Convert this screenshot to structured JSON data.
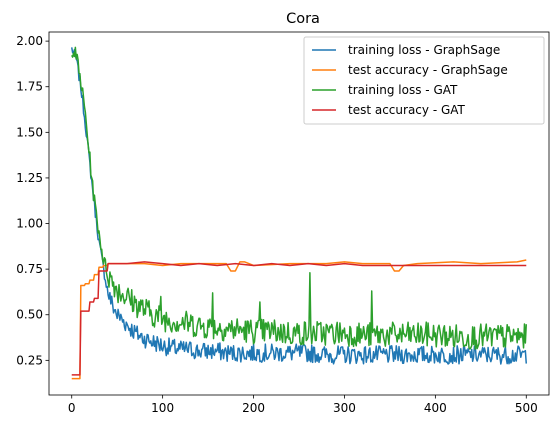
{
  "chart_data": {
    "type": "line",
    "title": "Cora",
    "xlabel": "",
    "ylabel": "",
    "xlim": [
      -25,
      525
    ],
    "ylim": [
      0.06,
      2.05
    ],
    "xticks": [
      0,
      100,
      200,
      300,
      400,
      500
    ],
    "xtick_labels": [
      "0",
      "100",
      "200",
      "300",
      "400",
      "500"
    ],
    "yticks": [
      0.25,
      0.5,
      0.75,
      1.0,
      1.25,
      1.5,
      1.75,
      2.0
    ],
    "ytick_labels": [
      "0.25",
      "0.50",
      "0.75",
      "1.00",
      "1.25",
      "1.50",
      "1.75",
      "2.00"
    ],
    "grid": false,
    "legend_position": "top-right",
    "series": [
      {
        "name": "training loss - GraphSage",
        "color": "#1f77b4",
        "x": [
          0,
          5,
          10,
          15,
          20,
          25,
          30,
          35,
          40,
          45,
          50,
          60,
          70,
          80,
          90,
          100,
          110,
          120,
          130,
          140,
          150,
          160,
          170,
          180,
          190,
          200,
          220,
          240,
          260,
          280,
          300,
          320,
          340,
          360,
          380,
          400,
          420,
          440,
          460,
          480,
          500
        ],
        "y": [
          1.96,
          1.9,
          1.75,
          1.55,
          1.32,
          1.1,
          0.9,
          0.75,
          0.62,
          0.55,
          0.5,
          0.45,
          0.4,
          0.37,
          0.35,
          0.33,
          0.32,
          0.31,
          0.31,
          0.3,
          0.3,
          0.3,
          0.29,
          0.29,
          0.29,
          0.29,
          0.29,
          0.29,
          0.29,
          0.28,
          0.28,
          0.28,
          0.28,
          0.28,
          0.28,
          0.28,
          0.28,
          0.28,
          0.28,
          0.28,
          0.28
        ],
        "noise": 0.05
      },
      {
        "name": "test accuracy - GraphSage",
        "color": "#ff7f0e",
        "x": [
          0,
          9,
          10,
          14,
          15,
          19,
          20,
          24,
          25,
          29,
          30,
          34,
          35,
          39,
          40,
          60,
          80,
          100,
          120,
          150,
          170,
          175,
          180,
          185,
          190,
          200,
          240,
          250,
          280,
          300,
          320,
          350,
          355,
          360,
          365,
          380,
          420,
          450,
          490,
          500
        ],
        "y": [
          0.15,
          0.15,
          0.66,
          0.66,
          0.67,
          0.67,
          0.69,
          0.69,
          0.72,
          0.72,
          0.76,
          0.76,
          0.77,
          0.77,
          0.78,
          0.78,
          0.78,
          0.77,
          0.78,
          0.78,
          0.78,
          0.74,
          0.74,
          0.79,
          0.79,
          0.77,
          0.78,
          0.78,
          0.78,
          0.79,
          0.78,
          0.78,
          0.74,
          0.74,
          0.77,
          0.78,
          0.79,
          0.78,
          0.79,
          0.8
        ]
      },
      {
        "name": "training loss - GAT",
        "color": "#2ca02c",
        "x": [
          0,
          5,
          10,
          15,
          20,
          25,
          30,
          35,
          40,
          45,
          50,
          60,
          70,
          80,
          90,
          100,
          120,
          140,
          160,
          180,
          200,
          220,
          240,
          260,
          280,
          300,
          320,
          340,
          360,
          380,
          400,
          420,
          440,
          460,
          480,
          500
        ],
        "y": [
          1.96,
          1.92,
          1.78,
          1.6,
          1.35,
          1.12,
          0.95,
          0.8,
          0.72,
          0.68,
          0.64,
          0.6,
          0.56,
          0.53,
          0.5,
          0.48,
          0.46,
          0.44,
          0.43,
          0.42,
          0.41,
          0.41,
          0.4,
          0.4,
          0.4,
          0.4,
          0.39,
          0.39,
          0.39,
          0.39,
          0.39,
          0.38,
          0.38,
          0.38,
          0.38,
          0.38
        ],
        "noise": 0.07,
        "spikes": [
          {
            "x": 262,
            "y": 0.73
          },
          {
            "x": 330,
            "y": 0.63
          },
          {
            "x": 98,
            "y": 0.6
          },
          {
            "x": 155,
            "y": 0.62
          },
          {
            "x": 207,
            "y": 0.57
          }
        ]
      },
      {
        "name": "test accuracy - GAT",
        "color": "#d62728",
        "x": [
          0,
          9,
          10,
          14,
          15,
          19,
          20,
          24,
          25,
          29,
          30,
          39,
          40,
          60,
          80,
          100,
          120,
          140,
          160,
          180,
          200,
          220,
          240,
          260,
          280,
          300,
          320,
          340,
          360,
          380,
          400,
          420,
          440,
          460,
          480,
          500
        ],
        "y": [
          0.17,
          0.17,
          0.52,
          0.52,
          0.52,
          0.52,
          0.57,
          0.57,
          0.59,
          0.59,
          0.74,
          0.74,
          0.78,
          0.78,
          0.79,
          0.78,
          0.77,
          0.78,
          0.77,
          0.78,
          0.77,
          0.78,
          0.77,
          0.78,
          0.77,
          0.78,
          0.77,
          0.77,
          0.77,
          0.77,
          0.77,
          0.77,
          0.77,
          0.77,
          0.77,
          0.77
        ]
      }
    ]
  }
}
